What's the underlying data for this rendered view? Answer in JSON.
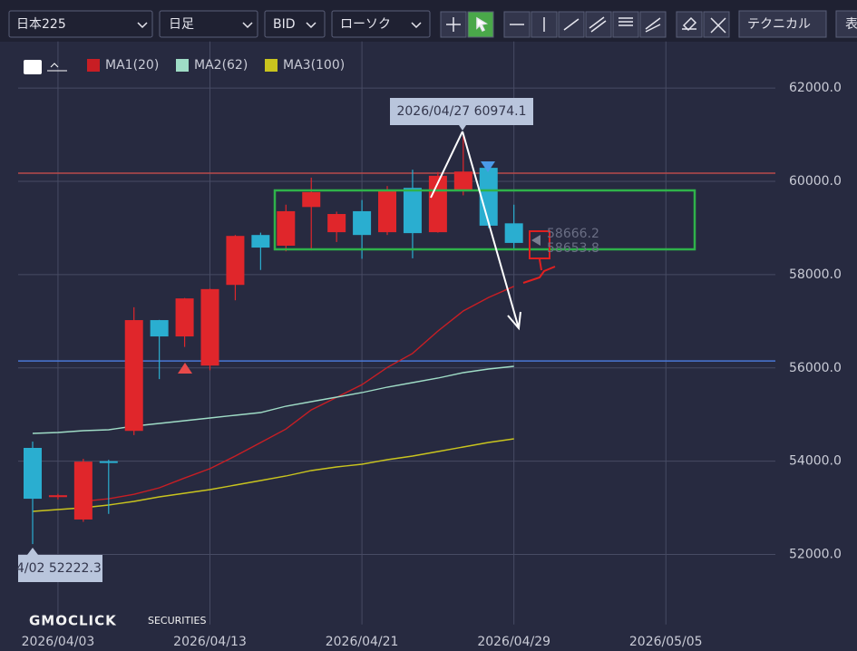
{
  "toolbar": {
    "symbol": "日本225",
    "period": "日足",
    "price_type": "BID",
    "chart_style": "ローソク",
    "technical": "テクニカル",
    "display": "表"
  },
  "watermark": {
    "brand": "GMOCLICK",
    "suffix": "SECURITIES"
  },
  "chart_data": {
    "type": "candlestick",
    "categories": [
      null,
      "2026/04/03",
      null,
      null,
      null,
      null,
      null,
      "2026/04/13",
      null,
      null,
      null,
      null,
      null,
      "2026/04/21",
      null,
      null,
      null,
      null,
      null,
      "2026/04/29",
      null,
      null,
      null,
      null,
      null,
      "2026/05/05"
    ],
    "open": [
      54285,
      53230,
      52750,
      54000,
      54650,
      57025,
      56675,
      56050,
      57780,
      58850,
      58620,
      59450,
      58910,
      59360,
      58910,
      59860,
      58910,
      59820,
      60290,
      59100,
      null,
      null,
      null,
      null,
      null,
      null
    ],
    "high": [
      54420,
      53300,
      54050,
      54030,
      57300,
      57030,
      57500,
      57700,
      58850,
      58900,
      59500,
      60080,
      59350,
      59600,
      59900,
      60250,
      60200,
      60974.1,
      60350,
      59500,
      null,
      null,
      null,
      null,
      null,
      null
    ],
    "low": [
      52222.3,
      53180,
      52700,
      52870,
      54560,
      55760,
      56450,
      55950,
      57450,
      58100,
      58500,
      58520,
      58700,
      58340,
      58850,
      58350,
      58900,
      59700,
      59000,
      58550,
      null,
      null,
      null,
      null,
      null,
      null
    ],
    "close": [
      53195,
      53270,
      53990,
      53980,
      57025,
      56675,
      57490,
      57690,
      58830,
      58580,
      59360,
      59770,
      59300,
      58850,
      59820,
      58890,
      60120,
      60210,
      59050,
      58680,
      null,
      null,
      null,
      null,
      null,
      null
    ],
    "up_color": "#e0262b",
    "down_color": "#2aaed0",
    "series": [
      {
        "name": "MA1(20)",
        "color": "#c81e24",
        "values": [
          null,
          null,
          53140,
          53195,
          53290,
          53430,
          53640,
          53840,
          54110,
          54400,
          54690,
          55100,
          55370,
          55640,
          56010,
          56310,
          56790,
          57220,
          57510,
          57750,
          null,
          null,
          null,
          null,
          null,
          null
        ]
      },
      {
        "name": "MA2(62)",
        "color": "#9fdcc6",
        "values": [
          54596,
          54615,
          54654,
          54673,
          54751,
          54810,
          54868,
          54926,
          54985,
          55043,
          55179,
          55276,
          55373,
          55470,
          55587,
          55684,
          55781,
          55898,
          55976,
          56034,
          null,
          null,
          null,
          null,
          null,
          null
        ]
      },
      {
        "name": "MA3(100)",
        "color": "#c9c41e",
        "values": [
          52924,
          52963,
          53002,
          53060,
          53138,
          53235,
          53313,
          53390,
          53488,
          53585,
          53682,
          53799,
          53877,
          53935,
          54032,
          54110,
          54207,
          54304,
          54401,
          54479,
          null,
          null,
          null,
          null,
          null,
          null
        ]
      }
    ],
    "hlines": [
      {
        "value": 60175,
        "color": "#b84a4a"
      },
      {
        "value": 56150,
        "color": "#4a78d6"
      }
    ],
    "ylim": [
      50500,
      63000
    ],
    "yticks": [
      {
        "value": 52000,
        "label": "52000.0"
      },
      {
        "value": 54000,
        "label": "54000.0"
      },
      {
        "value": 56000,
        "label": "56000.0"
      },
      {
        "value": 58000,
        "label": "58000.0"
      },
      {
        "value": 60000,
        "label": "60000.0"
      },
      {
        "value": 62000,
        "label": "62000.0"
      }
    ],
    "grid": true,
    "tooltip": "2026/04/27 60974.1",
    "low_label": "4/02 52222.3",
    "price_labels": [
      "58666.2",
      "58653.8"
    ]
  }
}
